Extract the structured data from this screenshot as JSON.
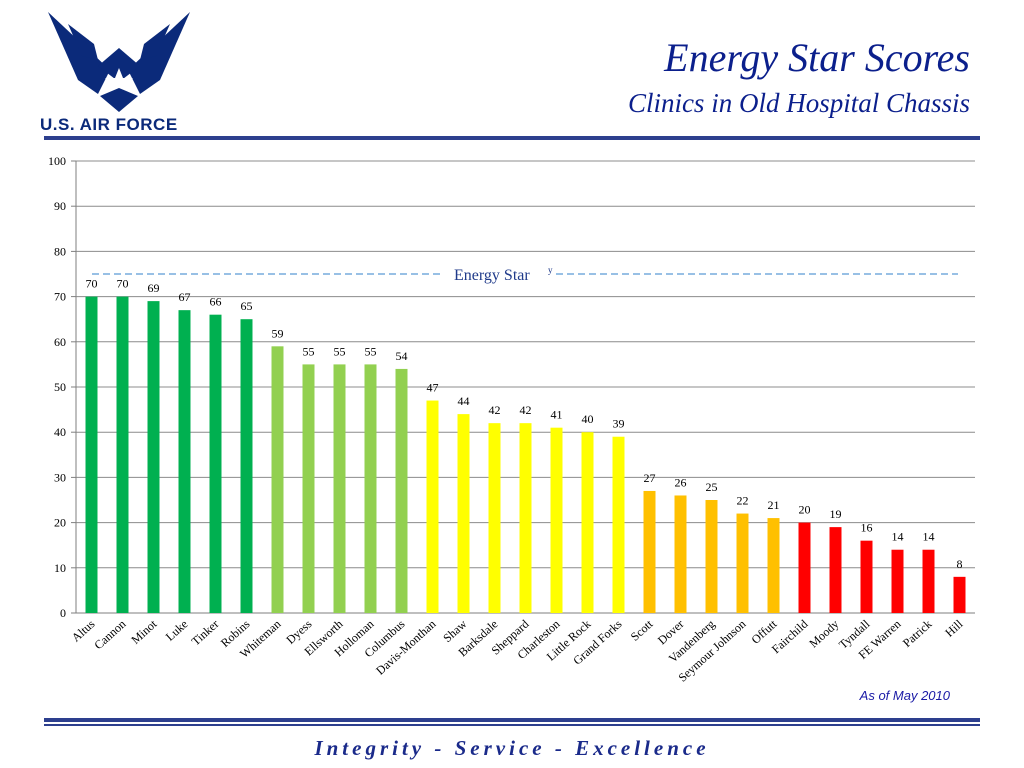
{
  "header": {
    "title": "Energy Star Scores",
    "subtitle": "Clinics in Old Hospital Chassis",
    "logo_text": "U.S. AIR FORCE"
  },
  "footer": {
    "as_of": "As of May 2010",
    "motto": "Integrity - Service - Excellence"
  },
  "colors": {
    "brand_blue": "#0b2a7a",
    "title_blue": "#0b1f8c",
    "rule_blue": "#2d3f8e",
    "reference_line": "#5b9bd5"
  },
  "chart_data": {
    "type": "bar",
    "title": "",
    "xlabel": "",
    "ylabel": "",
    "ylim": [
      0,
      100
    ],
    "yticks": [
      0,
      10,
      20,
      30,
      40,
      50,
      60,
      70,
      80,
      90,
      100
    ],
    "grid": true,
    "categories": [
      "Altus",
      "Cannon",
      "Minot",
      "Luke",
      "Tinker",
      "Robins",
      "Whiteman",
      "Dyess",
      "Ellsworth",
      "Holloman",
      "Columbus",
      "Davis-Monthan",
      "Shaw",
      "Barksdale",
      "Sheppard",
      "Charleston",
      "Little Rock",
      "Grand Forks",
      "Scott",
      "Dover",
      "Vandenberg",
      "Seymour Johnson",
      "Offutt",
      "Fairchild",
      "Moody",
      "Tyndall",
      "FE Warren",
      "Patrick",
      "Hill"
    ],
    "values": [
      70,
      70,
      69,
      67,
      66,
      65,
      59,
      55,
      55,
      55,
      54,
      47,
      44,
      42,
      42,
      41,
      40,
      39,
      27,
      26,
      25,
      22,
      21,
      20,
      19,
      16,
      14,
      14,
      8
    ],
    "bar_colors": [
      "#00b050",
      "#00b050",
      "#00b050",
      "#00b050",
      "#00b050",
      "#00b050",
      "#92d050",
      "#92d050",
      "#92d050",
      "#92d050",
      "#92d050",
      "#ffff00",
      "#ffff00",
      "#ffff00",
      "#ffff00",
      "#ffff00",
      "#ffff00",
      "#ffff00",
      "#ffc000",
      "#ffc000",
      "#ffc000",
      "#ffc000",
      "#ffc000",
      "#ff0000",
      "#ff0000",
      "#ff0000",
      "#ff0000",
      "#ff0000",
      "#ff0000"
    ],
    "reference_line": {
      "label": "Energy Star",
      "superscript": "y",
      "value": 75,
      "style": "dashed"
    }
  }
}
